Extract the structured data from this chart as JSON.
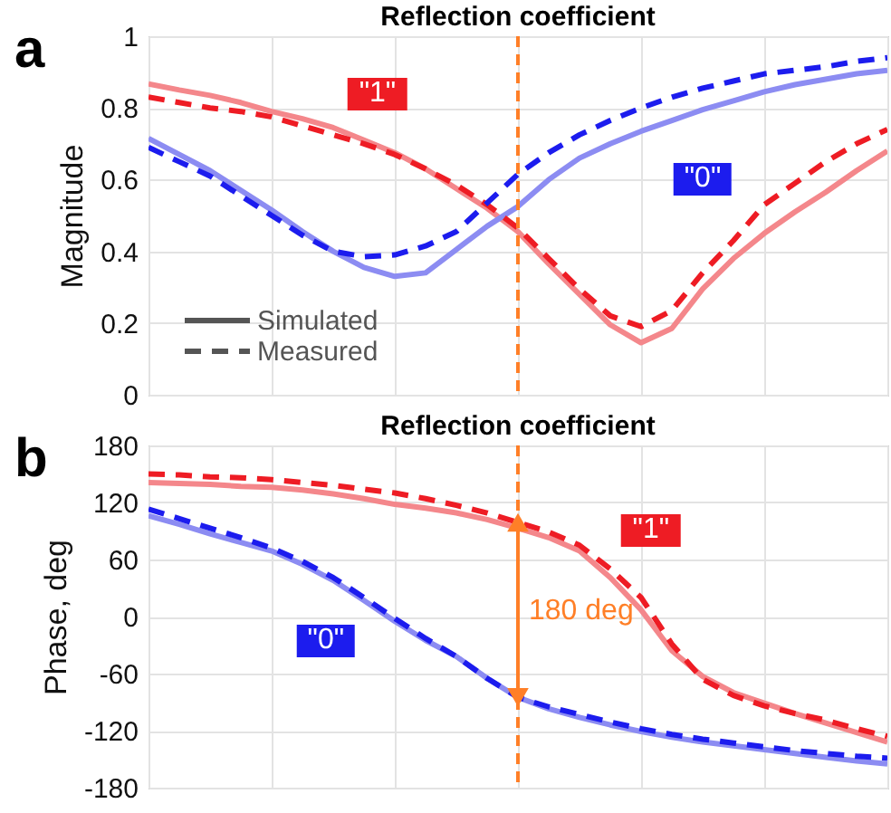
{
  "chart_data": [
    {
      "type": "line",
      "title": "Reflection coefficient",
      "ylabel": "Magnitude",
      "annotations": [
        "a",
        "Simulated",
        "Measured",
        "\"1\"",
        "\"0\""
      ],
      "categories": [
        null,
        null,
        null,
        null,
        null,
        null,
        null,
        null,
        null,
        null,
        null,
        null,
        null,
        null,
        null,
        null,
        null,
        null,
        null,
        null,
        null,
        null,
        null,
        null,
        null
      ],
      "ylim": [
        0,
        1
      ],
      "yticks": [
        0,
        0.2,
        0.4,
        0.6,
        0.8,
        1
      ],
      "grid": true,
      "tick_labels": "y",
      "series": [
        {
          "color": "#f4878b",
          "line_style": "solid",
          "values": [
            0.867,
            0.85,
            0.835,
            0.815,
            0.79,
            0.77,
            0.745,
            0.71,
            0.675,
            0.63,
            0.575,
            0.52,
            0.455,
            0.365,
            0.28,
            0.195,
            0.145,
            0.185,
            0.295,
            0.38,
            0.45,
            0.51,
            0.565,
            0.625,
            0.68
          ]
        },
        {
          "color": "#8c8cf2",
          "line_style": "solid",
          "values": [
            0.715,
            0.67,
            0.625,
            0.57,
            0.515,
            0.455,
            0.4,
            0.355,
            0.33,
            0.34,
            0.405,
            0.47,
            0.525,
            0.6,
            0.66,
            0.7,
            0.735,
            0.765,
            0.795,
            0.82,
            0.845,
            0.865,
            0.88,
            0.895,
            0.905
          ]
        },
        {
          "color": "#ee1c24",
          "line_style": "dashed",
          "values": [
            0.83,
            0.815,
            0.8,
            0.79,
            0.775,
            0.75,
            0.725,
            0.7,
            0.67,
            0.63,
            0.585,
            0.53,
            0.465,
            0.38,
            0.295,
            0.22,
            0.19,
            0.235,
            0.34,
            0.43,
            0.53,
            0.59,
            0.65,
            0.7,
            0.74
          ]
        },
        {
          "color": "#1c1cee",
          "line_style": "dashed",
          "values": [
            0.69,
            0.65,
            0.61,
            0.555,
            0.5,
            0.445,
            0.4,
            0.385,
            0.39,
            0.415,
            0.455,
            0.535,
            0.615,
            0.675,
            0.725,
            0.765,
            0.8,
            0.83,
            0.855,
            0.875,
            0.895,
            0.905,
            0.915,
            0.93,
            0.94
          ]
        }
      ]
    },
    {
      "type": "line",
      "title": "Reflection coefficient",
      "ylabel": "Phase, deg",
      "annotations": [
        "b",
        "180 deg",
        "\"1\"",
        "\"0\""
      ],
      "categories": [
        null,
        null,
        null,
        null,
        null,
        null,
        null,
        null,
        null,
        null,
        null,
        null,
        null,
        null,
        null,
        null,
        null,
        null,
        null,
        null,
        null,
        null,
        null,
        null,
        null
      ],
      "ylim": [
        -180,
        180
      ],
      "yticks": [
        -180,
        -120,
        -60,
        0,
        60,
        120,
        180
      ],
      "grid": true,
      "tick_labels": "y",
      "series": [
        {
          "color": "#f4878b",
          "line_style": "solid",
          "values": [
            141,
            140,
            139,
            137,
            136,
            133,
            129,
            124,
            118,
            114,
            109,
            102,
            93,
            83,
            69,
            41,
            7,
            -36,
            -63,
            -80,
            -91,
            -102,
            -112,
            -122,
            -132
          ]
        },
        {
          "color": "#8c8cf2",
          "line_style": "solid",
          "values": [
            106,
            97,
            87,
            78,
            69,
            55,
            38,
            17,
            -5,
            -25,
            -42,
            -65,
            -85,
            -97,
            -106,
            -114,
            -121,
            -127,
            -132,
            -136,
            -140,
            -144,
            -148,
            -152,
            -155
          ]
        },
        {
          "color": "#ee1c24",
          "line_style": "dashed",
          "values": [
            150,
            149,
            147,
            146,
            144,
            141,
            138,
            134,
            130,
            124,
            117,
            109,
            99,
            89,
            75,
            50,
            20,
            -29,
            -66,
            -83,
            -94,
            -102,
            -109,
            -118,
            -126
          ]
        },
        {
          "color": "#1c1cee",
          "line_style": "dashed",
          "values": [
            113,
            103,
            93,
            83,
            72,
            58,
            41,
            20,
            -2,
            -23,
            -42,
            -65,
            -85,
            -95,
            -103,
            -111,
            -118,
            -124,
            -129,
            -133,
            -137,
            -141,
            -144,
            -147,
            -149
          ]
        }
      ]
    }
  ]
}
